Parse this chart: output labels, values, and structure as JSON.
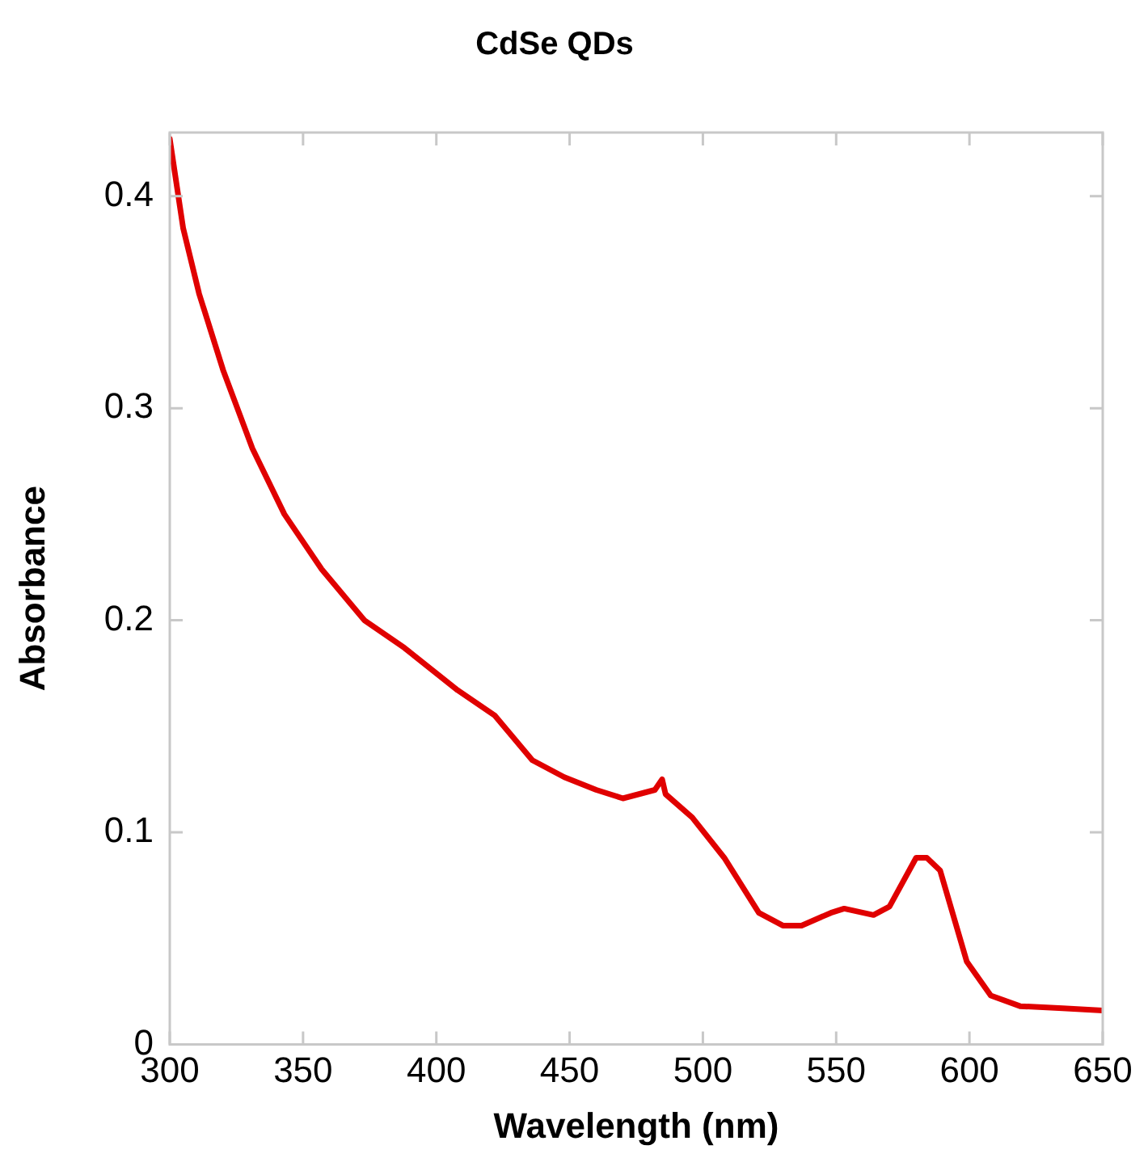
{
  "chart_data": {
    "type": "line",
    "title": "CdSe QDs",
    "xlabel": "Wavelength (nm)",
    "ylabel": "Absorbance",
    "xlim": [
      300,
      650
    ],
    "xticks": [
      300,
      350,
      400,
      450,
      500,
      550,
      600,
      650
    ],
    "ylim": [
      0,
      0.43
    ],
    "yticks": [
      0,
      0.1,
      0.2,
      0.3,
      0.4
    ],
    "grid": false,
    "legend": false,
    "marker": "none",
    "line_style": "solid",
    "series": [
      {
        "color": "#e00000",
        "x": [
          300,
          305,
          311,
          320,
          331,
          343,
          357,
          373,
          388,
          408,
          422,
          436,
          448,
          460,
          470,
          482,
          484.7,
          486,
          496,
          508,
          521,
          530,
          537,
          548,
          553,
          564,
          570,
          580,
          584,
          589,
          599,
          608,
          619,
          635,
          650
        ],
        "values": [
          0.427,
          0.385,
          0.354,
          0.318,
          0.281,
          0.25,
          0.224,
          0.2,
          0.187,
          0.167,
          0.155,
          0.134,
          0.126,
          0.12,
          0.116,
          0.12,
          0.125,
          0.118,
          0.107,
          0.088,
          0.062,
          0.056,
          0.056,
          0.062,
          0.064,
          0.061,
          0.065,
          0.088,
          0.088,
          0.082,
          0.039,
          0.023,
          0.018,
          0.017,
          0.016
        ]
      }
    ]
  }
}
